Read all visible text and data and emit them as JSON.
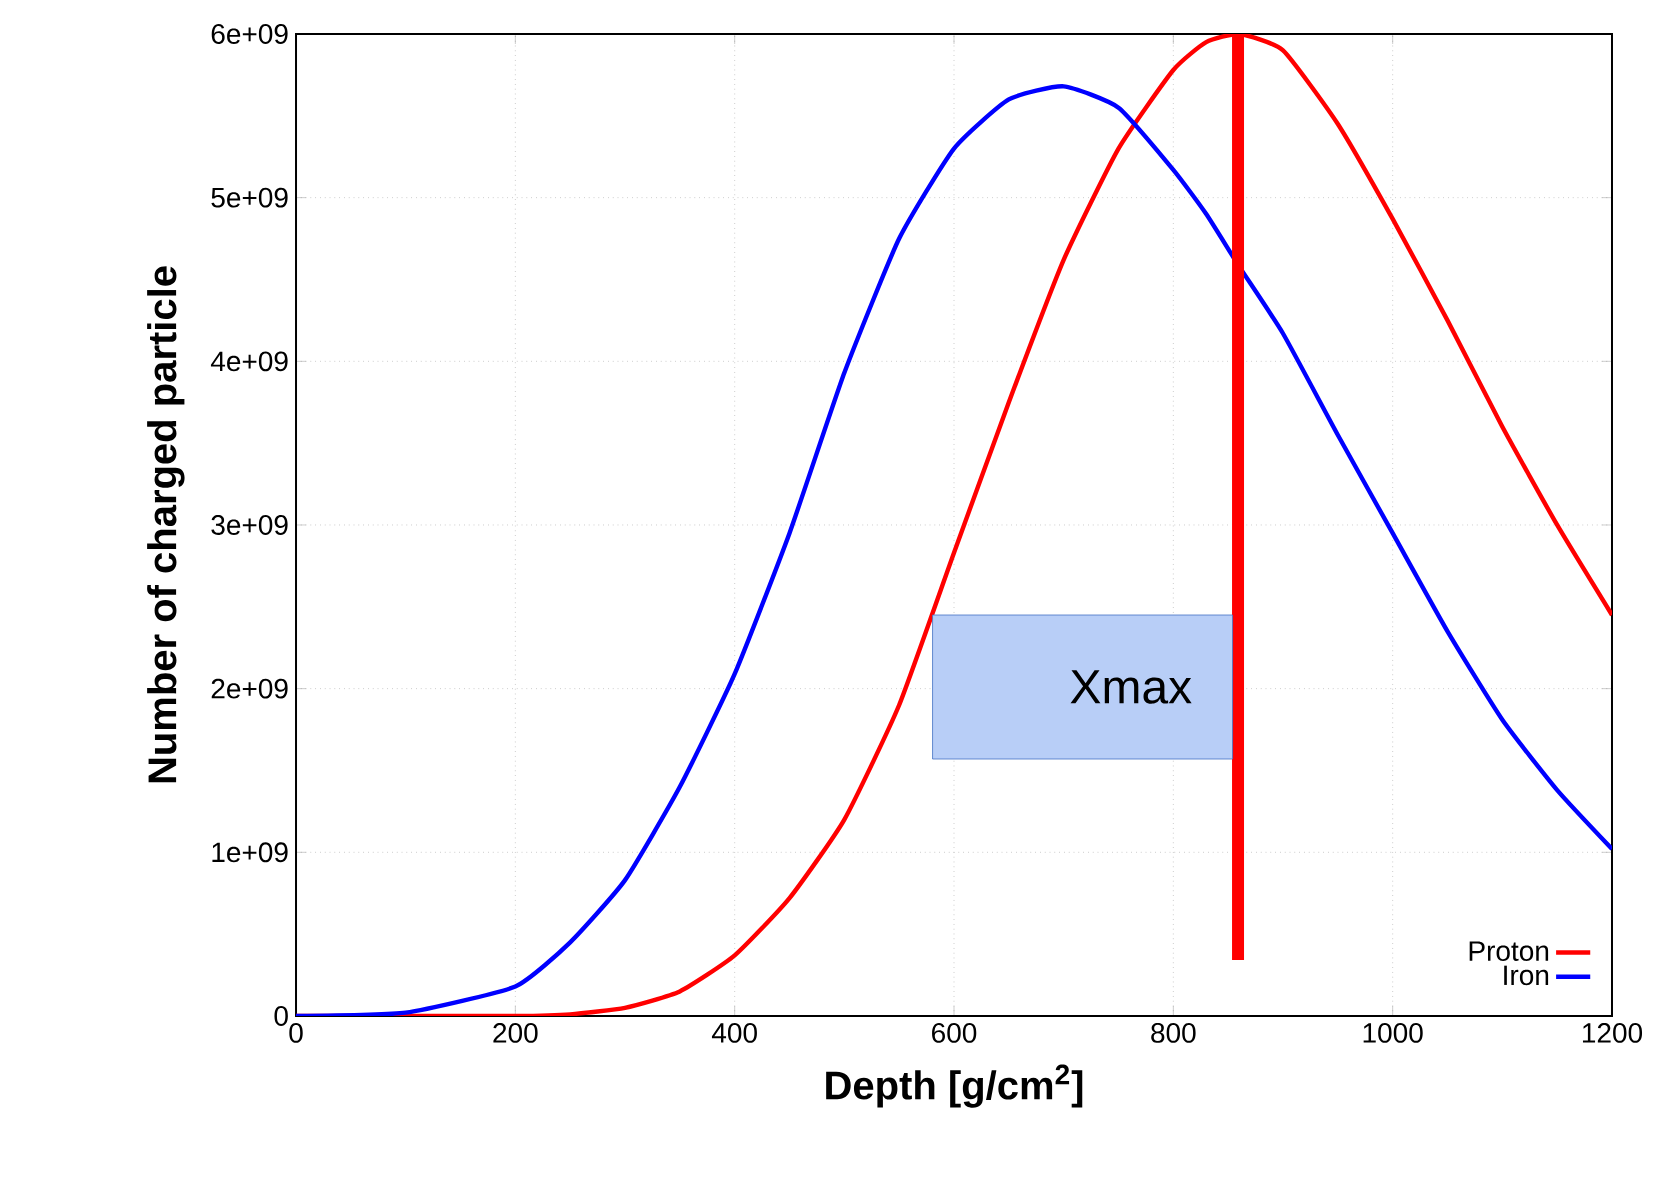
{
  "chart_data": {
    "type": "line",
    "xlabel": "Depth [g/cm$^{2}$]",
    "ylabel": "Number of charged particle",
    "x": [
      0,
      100,
      200,
      250,
      300,
      350,
      400,
      450,
      500,
      550,
      600,
      650,
      700,
      750,
      800,
      830,
      860,
      900,
      950,
      1000,
      1050,
      1100,
      1150,
      1200
    ],
    "series": [
      {
        "name": "Proton",
        "color": "#ff0000",
        "values": [
          0,
          0,
          0,
          10000000.0,
          50000000.0,
          150000000.0,
          370000000.0,
          720000000.0,
          1200000000.0,
          1900000000.0,
          2830000000.0,
          3750000000.0,
          4620000000.0,
          5300000000.0,
          5780000000.0,
          5950000000.0,
          6000000000.0,
          5900000000.0,
          5450000000.0,
          4870000000.0,
          4250000000.0,
          3600000000.0,
          3000000000.0,
          2450000000.0
        ]
      },
      {
        "name": "Iron",
        "color": "#0000ff",
        "values": [
          0,
          20000000.0,
          180000000.0,
          450000000.0,
          830000000.0,
          1400000000.0,
          2090000000.0,
          2950000000.0,
          3930000000.0,
          4750000000.0,
          5300000000.0,
          5600000000.0,
          5680000000.0,
          5550000000.0,
          5170000000.0,
          4900000000.0,
          4580000000.0,
          4170000000.0,
          3550000000.0,
          2950000000.0,
          2350000000.0,
          1810000000.0,
          1380000000.0,
          1020000000.0
        ]
      }
    ],
    "xlim": [
      0,
      1200
    ],
    "xticks": [
      0,
      200,
      400,
      600,
      800,
      1000,
      1200
    ],
    "ylim": [
      0,
      6000000000.0
    ],
    "yticks": [
      0,
      {
        "value": 1000000000.0,
        "label": "1e+09"
      },
      {
        "value": 2000000000.0,
        "label": "2e+09"
      },
      {
        "value": 3000000000.0,
        "label": "3e+09"
      },
      {
        "value": 4000000000.0,
        "label": "4e+09"
      },
      {
        "value": 5000000000.0,
        "label": "5e+09"
      },
      {
        "value": 6000000000.0,
        "label": "6e+09"
      }
    ],
    "ref_lines": [
      {
        "axis": "x",
        "value": 859,
        "label": "Xmax",
        "color": "#ff0000"
      }
    ],
    "grid": true,
    "legend": "bottom right",
    "marker": "none",
    "line_style": "solid"
  }
}
